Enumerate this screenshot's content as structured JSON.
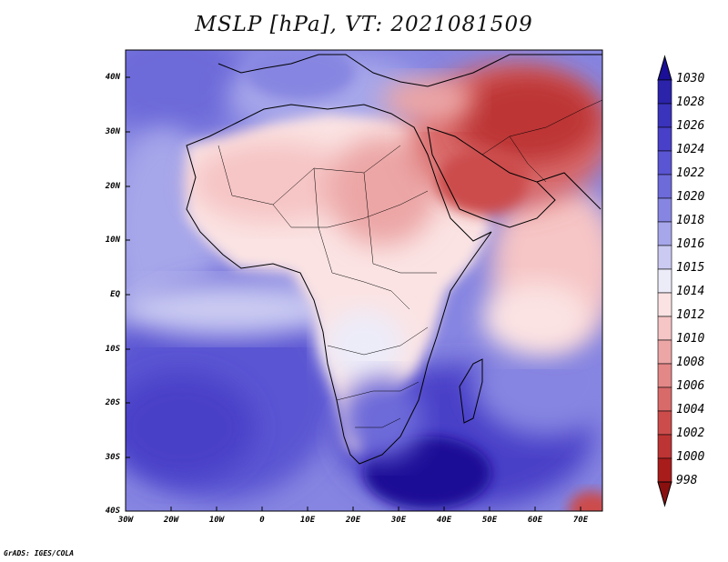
{
  "title": "MSLP [hPa], VT: 2021081509",
  "footer": "GrADS: IGES/COLA",
  "map": {
    "y_axis_labels": [
      "40N",
      "30N",
      "20N",
      "10N",
      "EQ",
      "10S",
      "20S",
      "30S",
      "40S"
    ],
    "x_axis_labels": [
      "30W",
      "20W",
      "10W",
      "0",
      "10E",
      "20E",
      "30E",
      "40E",
      "50E",
      "60E",
      "70E"
    ],
    "lon_range": [
      -30,
      75
    ],
    "lat_range": [
      -40,
      45
    ]
  },
  "colorbar": {
    "levels": [
      "1030",
      "1028",
      "1026",
      "1024",
      "1022",
      "1020",
      "1018",
      "1016",
      "1015",
      "1014",
      "1012",
      "1010",
      "1008",
      "1006",
      "1004",
      "1002",
      "1000",
      "998"
    ],
    "colors": [
      "#1a0f96",
      "#2b23aa",
      "#3a33bb",
      "#4840c8",
      "#5a55d2",
      "#6d6ad9",
      "#8685e1",
      "#a6a6ea",
      "#cacaf2",
      "#ececf9",
      "#fbe3e3",
      "#f6c5c5",
      "#eca6a6",
      "#e38787",
      "#d96a6a",
      "#cc4c4c",
      "#bd3434",
      "#a81c1c",
      "#8a1010"
    ]
  },
  "colors": {
    "ocean_high": "#5a55d2",
    "land_low": "#f6c5c5",
    "heat_low": "#bd3434"
  }
}
